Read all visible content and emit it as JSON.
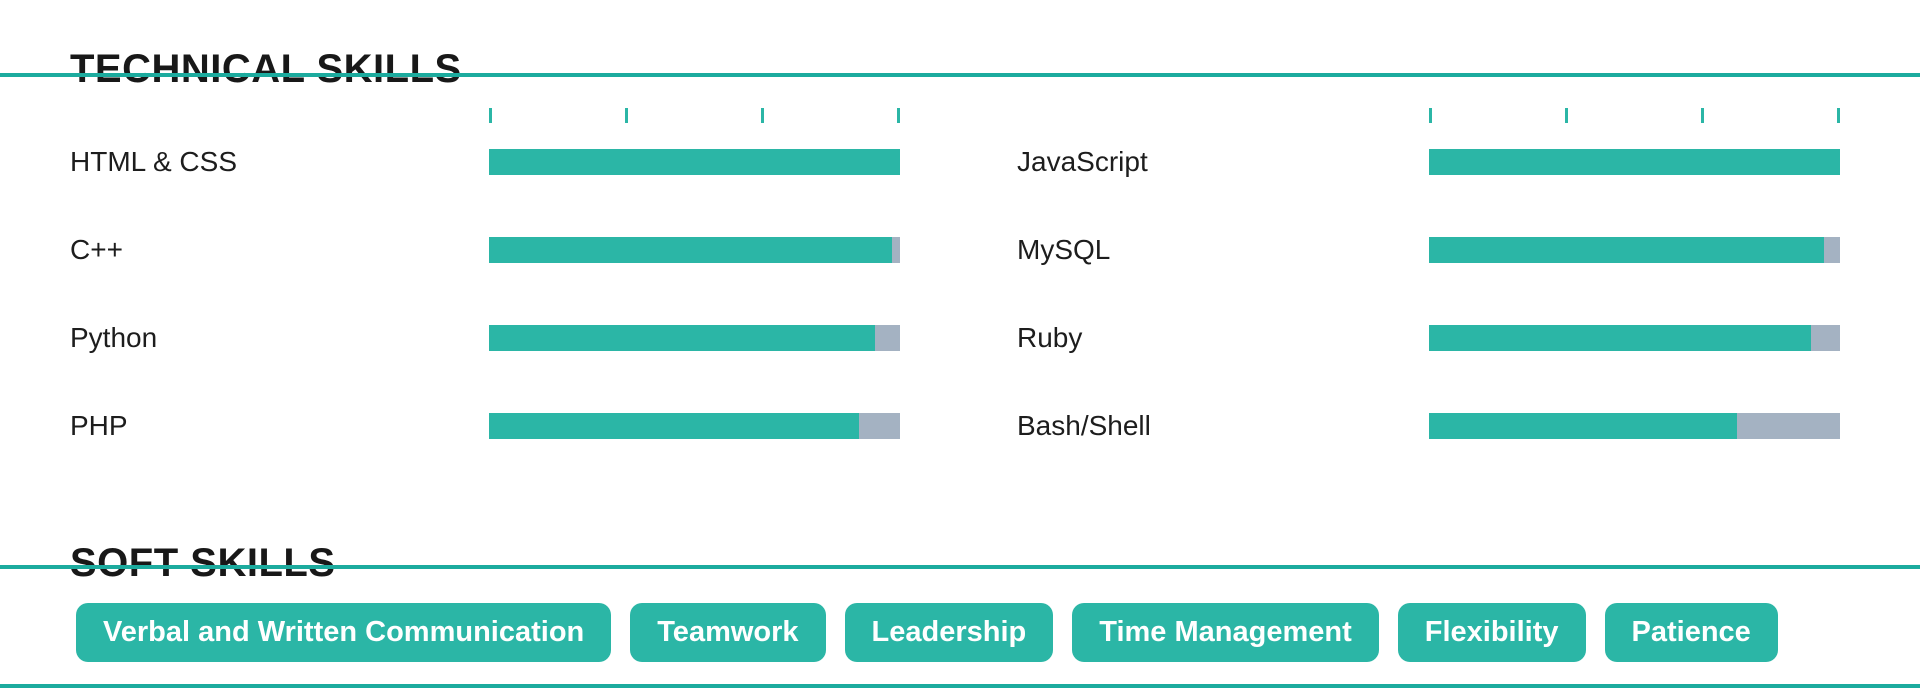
{
  "colors": {
    "accent_teal": "#2bb6a6",
    "rule_teal": "#1cab9e",
    "bar_remainder_gray": "#a4b2c2",
    "heading_text": "#181818",
    "tag_text": "#ffffff"
  },
  "sections": {
    "technical": {
      "title": "TECHNICAL SKILLS",
      "scale_ticks_per_bar": 4,
      "columns": [
        {
          "skills": [
            {
              "name": "HTML & CSS",
              "level": 100
            },
            {
              "name": "C++",
              "level": 98
            },
            {
              "name": "Python",
              "level": 94
            },
            {
              "name": "PHP",
              "level": 90
            }
          ]
        },
        {
          "skills": [
            {
              "name": "JavaScript",
              "level": 100
            },
            {
              "name": "MySQL",
              "level": 96
            },
            {
              "name": "Ruby",
              "level": 93
            },
            {
              "name": "Bash/Shell",
              "level": 75
            }
          ]
        }
      ]
    },
    "soft": {
      "title": "SOFT SKILLS",
      "tags": [
        "Verbal and Written Communication",
        "Teamwork",
        "Leadership",
        "Time Management",
        "Flexibility",
        "Patience"
      ]
    }
  }
}
